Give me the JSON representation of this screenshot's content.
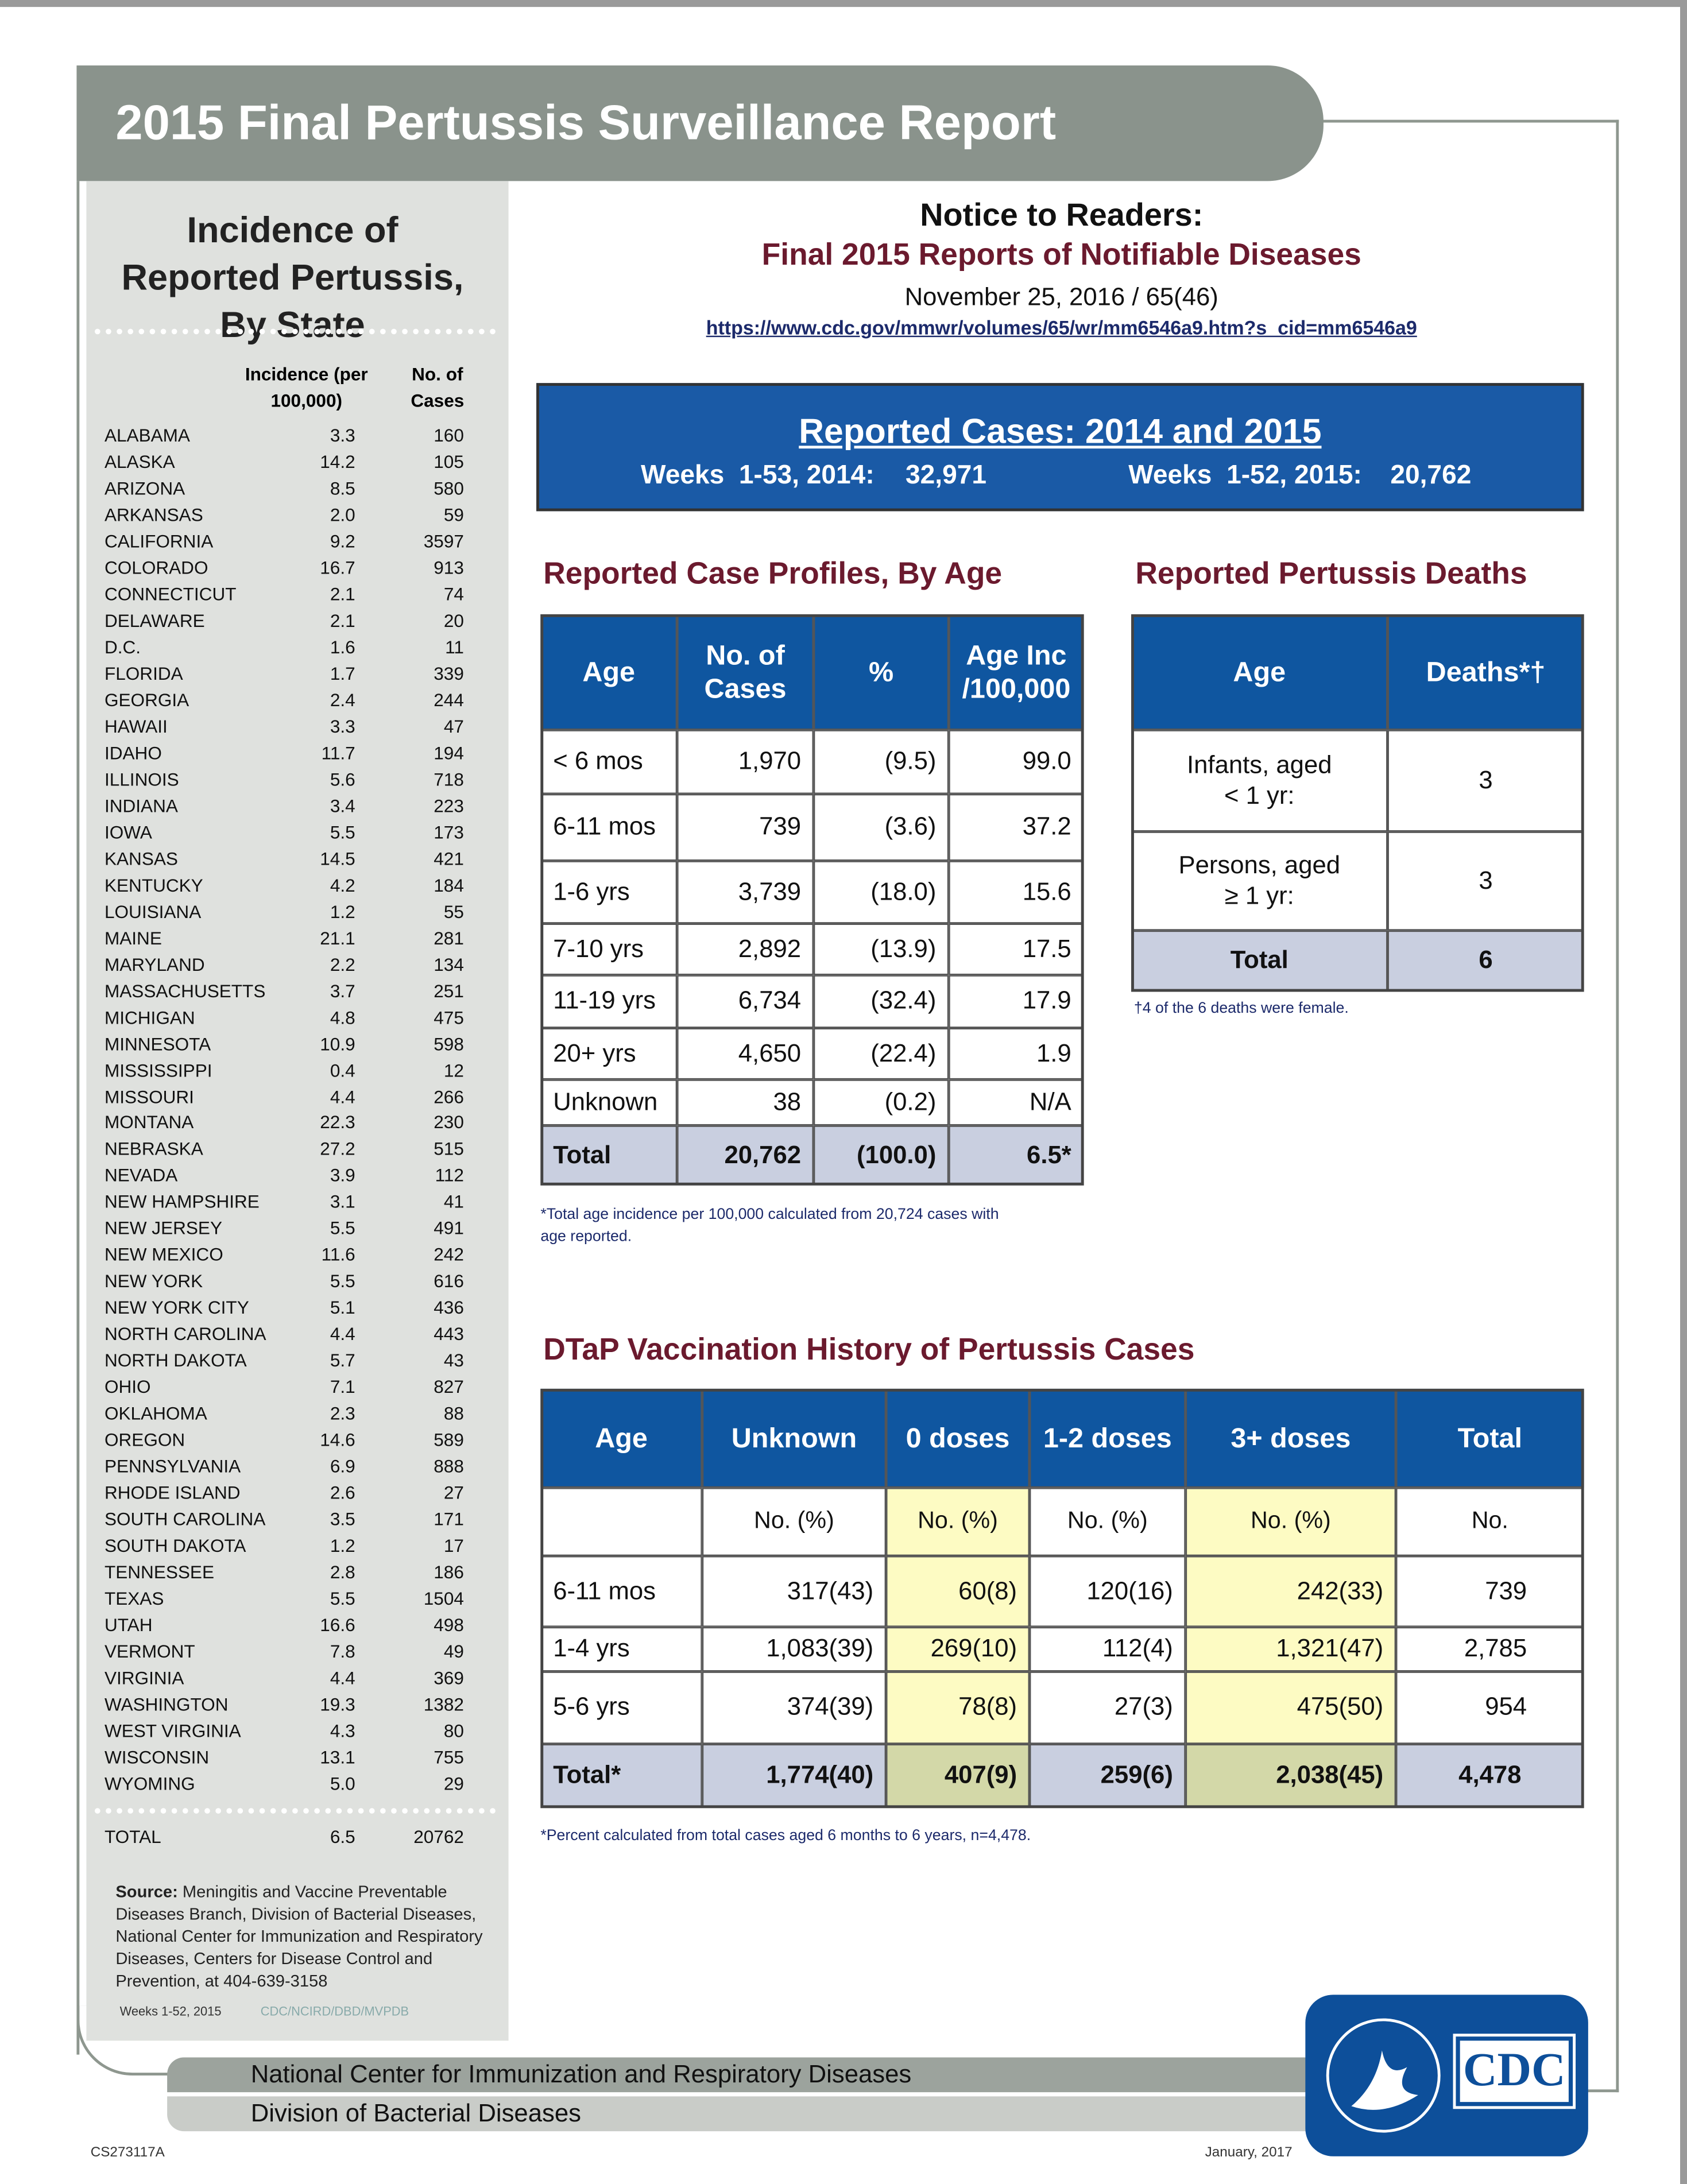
{
  "header": {
    "title": "2015 Final Pertussis Surveillance Report"
  },
  "sidebar": {
    "title": "Incidence of Reported Pertussis, By State",
    "headers": [
      "Incidence (per 100,000)",
      "No. of Cases"
    ],
    "rows": [
      [
        "ALABAMA",
        "3.3",
        "160"
      ],
      [
        "ALASKA",
        "14.2",
        "105"
      ],
      [
        "ARIZONA",
        "8.5",
        "580"
      ],
      [
        "ARKANSAS",
        "2.0",
        "59"
      ],
      [
        "CALIFORNIA",
        "9.2",
        "3597"
      ],
      [
        "COLORADO",
        "16.7",
        "913"
      ],
      [
        "CONNECTICUT",
        "2.1",
        "74"
      ],
      [
        "DELAWARE",
        "2.1",
        "20"
      ],
      [
        "D.C.",
        "1.6",
        "11"
      ],
      [
        "FLORIDA",
        "1.7",
        "339"
      ],
      [
        "GEORGIA",
        "2.4",
        "244"
      ],
      [
        "HAWAII",
        "3.3",
        "47"
      ],
      [
        "IDAHO",
        "11.7",
        "194"
      ],
      [
        "ILLINOIS",
        "5.6",
        "718"
      ],
      [
        "INDIANA",
        "3.4",
        "223"
      ],
      [
        "IOWA",
        "5.5",
        "173"
      ],
      [
        "KANSAS",
        "14.5",
        "421"
      ],
      [
        "KENTUCKY",
        "4.2",
        "184"
      ],
      [
        "LOUISIANA",
        "1.2",
        "55"
      ],
      [
        "MAINE",
        "21.1",
        "281"
      ],
      [
        "MARYLAND",
        "2.2",
        "134"
      ],
      [
        "MASSACHUSETTS",
        "3.7",
        "251"
      ],
      [
        "MICHIGAN",
        "4.8",
        "475"
      ],
      [
        "MINNESOTA",
        "10.9",
        "598"
      ],
      [
        "MISSISSIPPI",
        "0.4",
        "12"
      ],
      [
        "MISSOURI",
        "4.4",
        "266"
      ],
      [
        "MONTANA",
        "22.3",
        "230"
      ],
      [
        "NEBRASKA",
        "27.2",
        "515"
      ],
      [
        "NEVADA",
        "3.9",
        "112"
      ],
      [
        "NEW HAMPSHIRE",
        "3.1",
        "41"
      ],
      [
        "NEW JERSEY",
        "5.5",
        "491"
      ],
      [
        "NEW MEXICO",
        "11.6",
        "242"
      ],
      [
        "NEW YORK",
        "5.5",
        "616"
      ],
      [
        "NEW YORK CITY",
        "5.1",
        "436"
      ],
      [
        "NORTH CAROLINA",
        "4.4",
        "443"
      ],
      [
        "NORTH DAKOTA",
        "5.7",
        "43"
      ],
      [
        "OHIO",
        "7.1",
        "827"
      ],
      [
        "OKLAHOMA",
        "2.3",
        "88"
      ],
      [
        "OREGON",
        "14.6",
        "589"
      ],
      [
        "PENNSYLVANIA",
        "6.9",
        "888"
      ],
      [
        "RHODE ISLAND",
        "2.6",
        "27"
      ],
      [
        "SOUTH CAROLINA",
        "3.5",
        "171"
      ],
      [
        "SOUTH DAKOTA",
        "1.2",
        "17"
      ],
      [
        "TENNESSEE",
        "2.8",
        "186"
      ],
      [
        "TEXAS",
        "5.5",
        "1504"
      ],
      [
        "UTAH",
        "16.6",
        "498"
      ],
      [
        "VERMONT",
        "7.8",
        "49"
      ],
      [
        "VIRGINIA",
        "4.4",
        "369"
      ],
      [
        "WASHINGTON",
        "19.3",
        "1382"
      ],
      [
        "WEST VIRGINIA",
        "4.3",
        "80"
      ],
      [
        "WISCONSIN",
        "13.1",
        "755"
      ],
      [
        "WYOMING",
        "5.0",
        "29"
      ]
    ],
    "total": [
      "TOTAL",
      "6.5",
      "20762"
    ],
    "source": {
      "label": "Source:",
      "text": "Meningitis and Vaccine Preventable Diseases Branch, Division of Bacterial Diseases, National Center for Immunization and Respiratory Diseases, Centers for Disease Control and Prevention, at 404-639-3158"
    },
    "weeks": "Weeks 1-52, 2015",
    "code": "CDC/NCIRD/DBD/MVPDB"
  },
  "notice": {
    "heading": "Notice to Readers:",
    "subheading": "Final 2015 Reports of Notifiable Diseases",
    "date": "November 25, 2016 / 65(46)",
    "url": "https://www.cdc.gov/mmwr/volumes/65/wr/mm6546a9.htm?s_cid=mm6546a9"
  },
  "reported": {
    "title": "Reported Cases: 2014 and 2015",
    "label_2014": "Weeks  1-53, 2014:",
    "value_2014": "32,971",
    "label_2015": "Weeks  1-52, 2015:",
    "value_2015": "20,762"
  },
  "age_profile": {
    "title": "Reported Case Profiles, By Age",
    "headers": [
      "Age",
      "No. of Cases",
      "%",
      "Age Inc /100,000"
    ],
    "rows": [
      [
        "< 6 mos",
        "1,970",
        "(9.5)",
        "99.0"
      ],
      [
        "6-11 mos",
        "739",
        "(3.6)",
        "37.2"
      ],
      [
        "1-6 yrs",
        "3,739",
        "(18.0)",
        "15.6"
      ],
      [
        "7-10 yrs",
        "2,892",
        "(13.9)",
        "17.5"
      ],
      [
        "11-19 yrs",
        "6,734",
        "(32.4)",
        "17.9"
      ],
      [
        "20+ yrs",
        "4,650",
        "(22.4)",
        "1.9"
      ],
      [
        "Unknown",
        "38",
        "(0.2)",
        "N/A"
      ]
    ],
    "total": [
      "Total",
      "20,762",
      "(100.0)",
      "6.5*"
    ],
    "footnote": "*Total age incidence per 100,000 calculated from 20,724 cases with age reported."
  },
  "deaths": {
    "title": "Reported Pertussis Deaths",
    "headers": [
      "Age",
      "Deaths*†"
    ],
    "rows": [
      [
        "Infants, aged\n< 1 yr:",
        "3"
      ],
      [
        "Persons, aged\n≥ 1 yr:",
        "3"
      ]
    ],
    "total": [
      "Total",
      "6"
    ],
    "footnote": "†4 of the 6 deaths were female."
  },
  "dtap": {
    "title": "DTaP Vaccination History of Pertussis Cases",
    "headers": [
      "Age",
      "Unknown",
      "0 doses",
      "1-2 doses",
      "3+ doses",
      "Total"
    ],
    "subheaders": [
      "No. (%)",
      "No. (%)",
      "No. (%)",
      "No. (%)",
      "No."
    ],
    "rows": [
      [
        "6-11 mos",
        "317(43)",
        "60(8)",
        "120(16)",
        "242(33)",
        "739"
      ],
      [
        "1-4 yrs",
        "1,083(39)",
        "269(10)",
        "112(4)",
        "1,321(47)",
        "2,785"
      ],
      [
        "5-6 yrs",
        "374(39)",
        "78(8)",
        "27(3)",
        "475(50)",
        "954"
      ]
    ],
    "total": [
      "Total*",
      "1,774(40)",
      "407(9)",
      "259(6)",
      "2,038(45)",
      "4,478"
    ],
    "footnote": "*Percent calculated from total cases aged 6 months to 6 years, n=4,478."
  },
  "footer": {
    "center": "National Center for Immunization and Respiratory Diseases",
    "division": "Division of Bacterial Diseases",
    "logo": "CDC",
    "doc_id": "CS273117A",
    "date": "January, 2017"
  }
}
